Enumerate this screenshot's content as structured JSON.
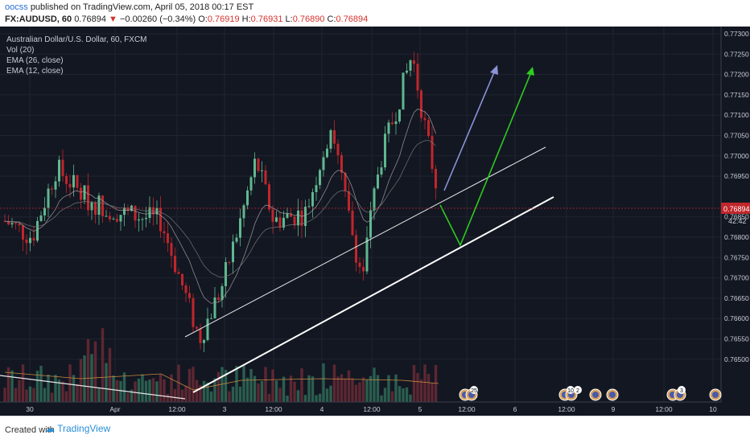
{
  "header": {
    "user": "oocss",
    "published_text": "published on TradingView.com, April 05, 2018 00:17 EST",
    "symbol": "FX:AUDUSD, 60",
    "price": "0.76894",
    "arrow": "▼",
    "change": "−0.00260 (−0.34%)",
    "o_label": "O:",
    "o_value": "0.76919",
    "h_label": "H:",
    "h_value": "0.76931",
    "l_label": "L:",
    "l_value": "0.76890",
    "c_label": "C:",
    "c_value": "0.76894"
  },
  "legend": {
    "title": "Australian Dollar/U.S. Dollar, 60, FXCM",
    "vol": "Vol (20)",
    "ema26": "EMA (26, close)",
    "ema12": "EMA (12, close)"
  },
  "price_axis": [
    "0.77300",
    "0.77250",
    "0.77200",
    "0.77150",
    "0.77100",
    "0.77050",
    "0.77000",
    "0.76950",
    "0.76850",
    "0.76800",
    "0.76750",
    "0.76700",
    "0.76650",
    "0.76600",
    "0.76550",
    "0.76500"
  ],
  "current_price": "0.76894",
  "countdown": "42:42",
  "time_axis": [
    "30",
    "Apr",
    "12:00",
    "3",
    "12:00",
    "4",
    "12:00",
    "5",
    "12:00",
    "6",
    "12:00",
    "9",
    "12:00",
    "10"
  ],
  "event_badges": [
    "25",
    "10",
    "2",
    "3"
  ],
  "footer": {
    "created_with": "Created with",
    "brand": "TradingView"
  },
  "colors": {
    "up": "#5fb88f",
    "down": "#c0262c",
    "background": "#131722",
    "green_arrow": "#2ecc1f",
    "blue_arrow": "#8b93d8"
  }
}
